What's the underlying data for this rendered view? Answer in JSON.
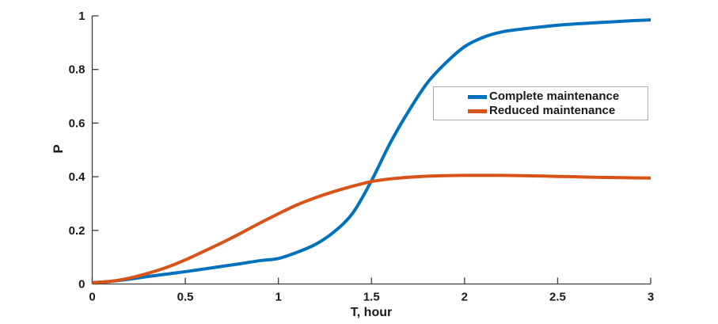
{
  "figure": {
    "background": "#ffffff",
    "text_color": "#1a1a1a",
    "axis_color": "#3b3b3b"
  },
  "chart_data": {
    "type": "line",
    "title": "",
    "xlabel": "T, hour",
    "ylabel": "P",
    "xlim": [
      0,
      3
    ],
    "ylim": [
      0,
      1
    ],
    "grid": false,
    "xticks": {
      "values": [
        0,
        0.5,
        1,
        1.5,
        2,
        2.5,
        3
      ],
      "labels": [
        "0",
        "0.5",
        "1",
        "1.5",
        "2",
        "2.5",
        "3"
      ]
    },
    "yticks": {
      "values": [
        0,
        0.2,
        0.4,
        0.6,
        0.8,
        1
      ],
      "labels": [
        "0",
        "0.2",
        "0.4",
        "0.6",
        "0.8",
        "1"
      ]
    },
    "legend": {
      "position": "inside-upper-right",
      "border_color": "#adadad",
      "background": "#ffffff"
    },
    "series": [
      {
        "name": "Complete maintenance",
        "color": "#0072BD",
        "line_width": 4,
        "x": [
          0,
          0.1,
          0.2,
          0.3,
          0.4,
          0.5,
          0.6,
          0.7,
          0.8,
          0.9,
          1.0,
          1.1,
          1.2,
          1.3,
          1.4,
          1.5,
          1.6,
          1.7,
          1.8,
          1.9,
          2.0,
          2.1,
          2.2,
          2.3,
          2.4,
          2.5,
          2.6,
          2.7,
          2.8,
          2.9,
          3.0
        ],
        "y": [
          0.005,
          0.01,
          0.018,
          0.028,
          0.037,
          0.046,
          0.056,
          0.066,
          0.076,
          0.087,
          0.095,
          0.118,
          0.148,
          0.195,
          0.265,
          0.385,
          0.525,
          0.645,
          0.75,
          0.825,
          0.885,
          0.92,
          0.94,
          0.95,
          0.958,
          0.965,
          0.97,
          0.974,
          0.978,
          0.982,
          0.985
        ]
      },
      {
        "name": "Reduced maintenance",
        "color": "#D95319",
        "line_width": 4,
        "x": [
          0,
          0.1,
          0.2,
          0.3,
          0.4,
          0.5,
          0.6,
          0.7,
          0.8,
          0.9,
          1.0,
          1.1,
          1.2,
          1.3,
          1.4,
          1.5,
          1.6,
          1.7,
          1.8,
          1.9,
          2.0,
          2.1,
          2.2,
          2.3,
          2.4,
          2.5,
          2.6,
          2.7,
          2.8,
          2.9,
          3.0
        ],
        "y": [
          0.005,
          0.01,
          0.022,
          0.04,
          0.062,
          0.09,
          0.122,
          0.155,
          0.19,
          0.227,
          0.262,
          0.295,
          0.322,
          0.345,
          0.365,
          0.382,
          0.392,
          0.398,
          0.402,
          0.404,
          0.405,
          0.405,
          0.405,
          0.404,
          0.403,
          0.401,
          0.4,
          0.398,
          0.397,
          0.396,
          0.395
        ]
      }
    ]
  }
}
